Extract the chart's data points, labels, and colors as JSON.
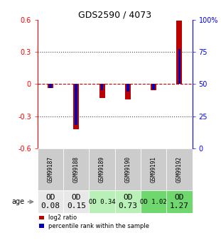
{
  "title": "GDS2590 / 4073",
  "samples": [
    "GSM99187",
    "GSM99188",
    "GSM99189",
    "GSM99190",
    "GSM99191",
    "GSM99192"
  ],
  "log2_ratio": [
    -0.04,
    -0.42,
    -0.13,
    -0.14,
    -0.06,
    0.59
  ],
  "percentile_rank": [
    47,
    18,
    45,
    44,
    46,
    77
  ],
  "ylim_left": [
    -0.6,
    0.6
  ],
  "ylim_right": [
    0,
    100
  ],
  "yticks_left": [
    -0.6,
    -0.3,
    0.0,
    0.3,
    0.6
  ],
  "yticks_right": [
    0,
    25,
    50,
    75,
    100
  ],
  "red_color": "#bb0000",
  "blue_color": "#0000bb",
  "dotted_line_color": "#444444",
  "zero_line_color": "#cc0000",
  "age_labels": [
    "OD\n0.08",
    "OD\n0.15",
    "OD 0.34",
    "OD\n0.73",
    "OD 1.02",
    "OD\n1.27"
  ],
  "age_bg_colors": [
    "#e8e8e8",
    "#e8e8e8",
    "#b8f0b8",
    "#b8f0b8",
    "#6ed86e",
    "#6ed86e"
  ],
  "age_font_sizes": [
    8,
    8,
    6.5,
    8,
    6.5,
    8
  ],
  "sample_bg_color": "#cccccc",
  "legend_red": "log2 ratio",
  "legend_blue": "percentile rank within the sample",
  "age_label": "age"
}
